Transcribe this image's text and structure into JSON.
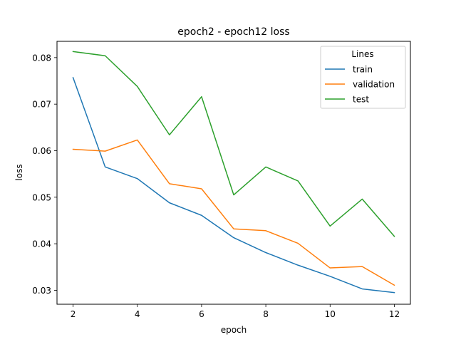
{
  "chart_data": {
    "type": "line",
    "title": "epoch2 - epoch12 loss",
    "xlabel": "epoch",
    "ylabel": "loss",
    "xlim": [
      1.5,
      12.5
    ],
    "ylim": [
      0.027,
      0.0835
    ],
    "x": [
      2,
      3,
      4,
      5,
      6,
      7,
      8,
      9,
      10,
      11,
      12
    ],
    "xticks": [
      2,
      4,
      6,
      8,
      10,
      12
    ],
    "xtick_labels": [
      "2",
      "4",
      "6",
      "8",
      "10",
      "12"
    ],
    "yticks": [
      0.03,
      0.04,
      0.05,
      0.06,
      0.07,
      0.08
    ],
    "ytick_labels": [
      "0.03",
      "0.04",
      "0.05",
      "0.06",
      "0.07",
      "0.08"
    ],
    "grid": false,
    "legend": {
      "title": "Lines",
      "position": "top-right"
    },
    "series": [
      {
        "name": "train",
        "color": "#1f77b4",
        "values": [
          0.0757,
          0.0565,
          0.054,
          0.0488,
          0.0461,
          0.0413,
          0.0381,
          0.0354,
          0.033,
          0.0303,
          0.0295
        ]
      },
      {
        "name": "validation",
        "color": "#ff7f0e",
        "values": [
          0.0603,
          0.0599,
          0.0623,
          0.0529,
          0.0518,
          0.0432,
          0.0428,
          0.0401,
          0.0348,
          0.0351,
          0.0311
        ]
      },
      {
        "name": "test",
        "color": "#2ca02c",
        "values": [
          0.0813,
          0.0804,
          0.0738,
          0.0634,
          0.0716,
          0.0505,
          0.0565,
          0.0535,
          0.0438,
          0.0496,
          0.0416
        ]
      }
    ]
  }
}
